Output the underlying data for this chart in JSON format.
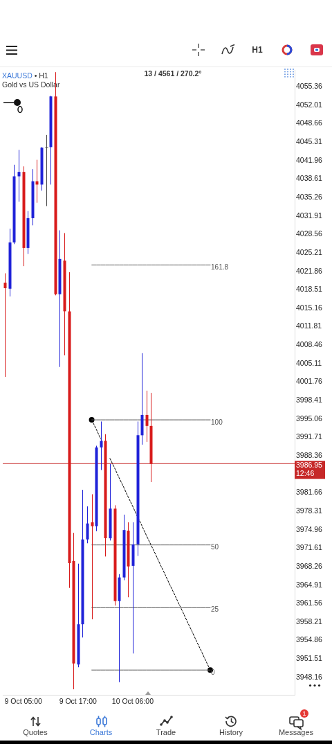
{
  "chart_data": {
    "type": "candlestick",
    "title": "XAUUSD • H1",
    "subtitle": "Gold vs US Dollar",
    "categories": [
      null,
      null,
      null,
      null,
      "9 Oct 05:00",
      null,
      null,
      null,
      null,
      null,
      null,
      null,
      null,
      null,
      null,
      null,
      "9 Oct 17:00",
      null,
      null,
      null,
      null,
      null,
      null,
      null,
      null,
      null,
      null,
      null,
      "10 Oct 06:00",
      null,
      null,
      null,
      null,
      null,
      null,
      null,
      null,
      null,
      null,
      null,
      null,
      null,
      null,
      null,
      null,
      null,
      null,
      null,
      null,
      null,
      null,
      null,
      null,
      null,
      null,
      null,
      null,
      null,
      null,
      null,
      null,
      null,
      null,
      null
    ],
    "ylim": [
      3945.0,
      4058.4
    ],
    "yticks": [
      4055.36,
      4052.01,
      4048.66,
      4045.31,
      4041.96,
      4038.61,
      4035.26,
      4031.91,
      4028.56,
      4025.21,
      4021.86,
      4018.51,
      4015.16,
      4011.81,
      4008.46,
      4005.11,
      4001.76,
      3998.41,
      3995.06,
      3991.71,
      3988.36,
      3981.66,
      3978.31,
      3974.96,
      3971.61,
      3968.26,
      3964.91,
      3961.56,
      3958.21,
      3954.86,
      3951.51,
      3948.16
    ],
    "series": [
      {
        "ohlc": [
          [
            4019.8,
            4021.5,
            4002.7,
            4018.8
          ],
          [
            4018.7,
            4029.6,
            4017.3,
            4027.1
          ],
          [
            4027.1,
            4041.2,
            4026.8,
            4039.1
          ],
          [
            4039.1,
            4043.9,
            4034.5,
            4039.9
          ],
          [
            4039.9,
            4040.9,
            4022.8,
            4026.1
          ],
          [
            4026.1,
            4032.8,
            4025.0,
            4031.5
          ],
          [
            4031.5,
            4040.4,
            4030.2,
            4038.2
          ],
          [
            4038.2,
            4042.1,
            4034.3,
            4037.6
          ],
          [
            4037.6,
            4044.4,
            4036.5,
            4044.3
          ],
          [
            4044.4,
            4046.6,
            4033.7,
            4044.4
          ],
          [
            4044.4,
            4053.7,
            4037.6,
            4053.6
          ],
          [
            4053.6,
            4058.0,
            4017.5,
            4017.7
          ],
          [
            4017.7,
            4029.3,
            4004.5,
            4024.1
          ],
          [
            4023.8,
            4028.8,
            4006.6,
            4014.6
          ],
          [
            4014.6,
            4021.7,
            3964.4,
            3968.9
          ],
          [
            3969.3,
            3974.4,
            3946.0,
            3950.7
          ],
          [
            3950.5,
            3968.8,
            3950.0,
            3957.8
          ],
          [
            3957.8,
            3982.2,
            3955.4,
            3973.2
          ],
          [
            3973.2,
            3979.2,
            3972.5,
            3976.1
          ],
          [
            3976.3,
            3981.4,
            3958.7,
            3975.6
          ],
          [
            3975.6,
            3990.2,
            3974.7,
            3989.9
          ],
          [
            3989.9,
            3994.6,
            3985.8,
            3991.1
          ],
          [
            3991.1,
            3992.3,
            3970.1,
            3973.4
          ],
          [
            3973.4,
            3986.9,
            3973.0,
            3978.8
          ],
          [
            3978.8,
            3979.4,
            3961.2,
            3962.0
          ],
          [
            3962.0,
            3966.9,
            3947.3,
            3966.3
          ],
          [
            3966.3,
            3977.7,
            3965.8,
            3974.9
          ],
          [
            3974.8,
            3976.3,
            3962.7,
            3968.3
          ],
          [
            3968.4,
            3976.3,
            3952.5,
            3972.3
          ],
          [
            3972.3,
            3994.6,
            3970.2,
            3992.1
          ],
          [
            3992.1,
            4007.0,
            3990.4,
            3995.8
          ],
          [
            3995.8,
            4000.2,
            3990.9,
            3993.8
          ],
          [
            3993.8,
            3999.8,
            3983.6,
            3986.95
          ],
          null,
          null,
          null,
          null,
          null,
          null,
          null,
          null,
          null,
          null,
          null,
          null,
          null,
          null,
          null,
          null,
          null,
          null,
          null,
          null,
          null,
          null,
          null,
          null,
          null,
          null,
          null,
          null,
          null,
          null,
          null
        ],
        "colors": [
          "#d81b1b",
          "#1f22d8",
          "#1f22d8",
          "#1f22d8",
          "#d81b1b",
          "#1f22d8",
          "#1f22d8",
          "#d81b1b",
          "#1f22d8",
          "#444444",
          "#1f22d8",
          "#d81b1b",
          "#1f22d8",
          "#d81b1b",
          "#d81b1b",
          "#d81b1b",
          "#1f22d8",
          "#1f22d8",
          "#1f22d8",
          "#d81b1b",
          "#1f22d8",
          "#1f22d8",
          "#d81b1b",
          "#1f22d8",
          "#d81b1b",
          "#1f22d8",
          "#1f22d8",
          "#d81b1b",
          "#1f22d8",
          "#1f22d8",
          "#1f22d8",
          "#d81b1b",
          "#d81b1b",
          null,
          null,
          null,
          null,
          null,
          null,
          null,
          null,
          null,
          null,
          null,
          null,
          null,
          null,
          null,
          null,
          null,
          null,
          null,
          null,
          null,
          null,
          null,
          null,
          null,
          null,
          null,
          null,
          null,
          null,
          null
        ]
      },
      {
        "type": "line",
        "name": "161.8",
        "color": "#555555",
        "marker": "none",
        "line_style": "solid",
        "values": [
          null,
          null,
          null,
          null,
          null,
          null,
          null,
          null,
          null,
          null,
          null,
          null,
          null,
          null,
          null,
          null,
          null,
          null,
          null,
          4023.0,
          4023.0,
          4023.0,
          4023.0,
          4023.0,
          4023.0,
          4023.0,
          4023.0,
          4023.0,
          4023.0,
          4023.0,
          4023.0,
          4023.0,
          4023.0,
          4023.0,
          4023.0,
          4023.0,
          4023.0,
          4023.0,
          4023.0,
          4023.0,
          4023.0,
          4023.0,
          4023.0,
          4023.0,
          4023.0,
          4023.0,
          null,
          null,
          null,
          null,
          null,
          null,
          null,
          null,
          null,
          null,
          null,
          null,
          null,
          null,
          null,
          null,
          null,
          null
        ]
      },
      {
        "type": "line",
        "name": "100",
        "color": "#555555",
        "marker": "none",
        "line_style": "solid",
        "values": [
          null,
          null,
          null,
          null,
          null,
          null,
          null,
          null,
          null,
          null,
          null,
          null,
          null,
          null,
          null,
          null,
          null,
          null,
          null,
          3994.9,
          3994.9,
          3994.9,
          3994.9,
          3994.9,
          3994.9,
          3994.9,
          3994.9,
          3994.9,
          3994.9,
          3994.9,
          3994.9,
          3994.9,
          3994.9,
          3994.9,
          3994.9,
          3994.9,
          3994.9,
          3994.9,
          3994.9,
          3994.9,
          3994.9,
          3994.9,
          3994.9,
          3994.9,
          3994.9,
          3994.9,
          null,
          null,
          null,
          null,
          null,
          null,
          null,
          null,
          null,
          null,
          null,
          null,
          null,
          null,
          null,
          null,
          null,
          null
        ]
      },
      {
        "type": "line",
        "name": "50",
        "color": "#555555",
        "marker": "none",
        "line_style": "solid",
        "values": [
          null,
          null,
          null,
          null,
          null,
          null,
          null,
          null,
          null,
          null,
          null,
          null,
          null,
          null,
          null,
          null,
          null,
          null,
          null,
          3972.2,
          3972.2,
          3972.2,
          3972.2,
          3972.2,
          3972.2,
          3972.2,
          3972.2,
          3972.2,
          3972.2,
          3972.2,
          3972.2,
          3972.2,
          3972.2,
          3972.2,
          3972.2,
          3972.2,
          3972.2,
          3972.2,
          3972.2,
          3972.2,
          3972.2,
          3972.2,
          3972.2,
          3972.2,
          3972.2,
          3972.2,
          null,
          null,
          null,
          null,
          null,
          null,
          null,
          null,
          null,
          null,
          null,
          null,
          null,
          null,
          null,
          null,
          null,
          null
        ]
      },
      {
        "type": "line",
        "name": "25",
        "color": "#555555",
        "marker": "none",
        "line_style": "solid",
        "values": [
          null,
          null,
          null,
          null,
          null,
          null,
          null,
          null,
          null,
          null,
          null,
          null,
          null,
          null,
          null,
          null,
          null,
          null,
          null,
          3960.9,
          3960.9,
          3960.9,
          3960.9,
          3960.9,
          3960.9,
          3960.9,
          3960.9,
          3960.9,
          3960.9,
          3960.9,
          3960.9,
          3960.9,
          3960.9,
          3960.9,
          3960.9,
          3960.9,
          3960.9,
          3960.9,
          3960.9,
          3960.9,
          3960.9,
          3960.9,
          3960.9,
          3960.9,
          3960.9,
          3960.9,
          null,
          null,
          null,
          null,
          null,
          null,
          null,
          null,
          null,
          null,
          null,
          null,
          null,
          null,
          null,
          null,
          null,
          null
        ]
      },
      {
        "type": "line",
        "name": "0",
        "color": "#555555",
        "marker": "none",
        "line_style": "solid",
        "values": [
          null,
          null,
          null,
          null,
          null,
          null,
          null,
          null,
          null,
          null,
          null,
          null,
          null,
          null,
          null,
          null,
          null,
          null,
          null,
          3949.5,
          3949.5,
          3949.5,
          3949.5,
          3949.5,
          3949.5,
          3949.5,
          3949.5,
          3949.5,
          3949.5,
          3949.5,
          3949.5,
          3949.5,
          3949.5,
          3949.5,
          3949.5,
          3949.5,
          3949.5,
          3949.5,
          3949.5,
          3949.5,
          3949.5,
          3949.5,
          3949.5,
          3949.5,
          3949.5,
          3949.5,
          null,
          null,
          null,
          null,
          null,
          null,
          null,
          null,
          null,
          null,
          null,
          null,
          null,
          null,
          null,
          null,
          null,
          null
        ]
      },
      {
        "type": "line",
        "color": "#000000",
        "marker": "none",
        "line_style": "dashed",
        "values": [
          null,
          null,
          null,
          null,
          null,
          null,
          null,
          null,
          null,
          null,
          null,
          null,
          null,
          null,
          null,
          null,
          null,
          null,
          null,
          3994.9,
          3993.2,
          3991.4,
          null,
          3987.9,
          3986.2,
          3984.4,
          3982.7,
          3980.9,
          3979.2,
          3977.4,
          3975.7,
          3973.9,
          3972.2,
          3970.5,
          3968.7,
          3967.0,
          3965.2,
          3963.5,
          3961.7,
          3960.0,
          3958.2,
          3956.5,
          3954.7,
          3953.0,
          3951.2,
          3949.5,
          null,
          null,
          null,
          null,
          null,
          null,
          null,
          null,
          null,
          null,
          null,
          null,
          null,
          null,
          null,
          null,
          null,
          null
        ]
      },
      {
        "type": "scatter",
        "color": "#000000",
        "marker": "circle",
        "values": [
          null,
          null,
          null,
          null,
          null,
          null,
          null,
          null,
          null,
          null,
          null,
          null,
          null,
          null,
          null,
          null,
          null,
          null,
          null,
          3994.9,
          null,
          null,
          null,
          null,
          null,
          null,
          null,
          null,
          null,
          null,
          null,
          null,
          null,
          null,
          null,
          null,
          null,
          null,
          null,
          null,
          null,
          null,
          null,
          null,
          null,
          3949.5,
          null,
          null,
          null,
          null,
          null,
          null,
          null,
          null,
          null,
          null,
          null,
          null,
          null,
          null,
          null,
          null,
          null,
          null
        ]
      }
    ],
    "ref_lines": [
      {
        "axis": "y",
        "value": 3986.95,
        "label": "3986.95",
        "color": "#c62828"
      }
    ],
    "annotations": [
      "13 / 4561 / 270.2°",
      "12:46",
      "H1",
      "Quotes",
      "Charts",
      "Trade",
      "History",
      "Messages",
      "1"
    ]
  }
}
